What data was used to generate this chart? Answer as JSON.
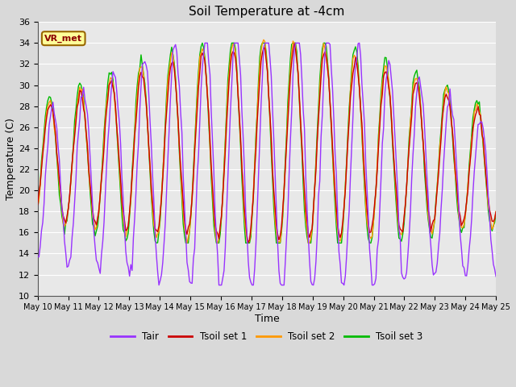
{
  "title": "Soil Temperature at -4cm",
  "xlabel": "Time",
  "ylabel": "Temperature (C)",
  "ylim": [
    10,
    36
  ],
  "yticks": [
    10,
    12,
    14,
    16,
    18,
    20,
    22,
    24,
    26,
    28,
    30,
    32,
    34,
    36
  ],
  "colors": {
    "Tair": "#9933ff",
    "Tsoil1": "#cc0000",
    "Tsoil2": "#ff9900",
    "Tsoil3": "#00bb00"
  },
  "annotation_text": "VR_met",
  "annotation_bg": "#ffff99",
  "annotation_border": "#996600",
  "legend_labels": [
    "Tair",
    "Tsoil set 1",
    "Tsoil set 2",
    "Tsoil set 3"
  ],
  "xtick_labels": [
    "May 10",
    "May 11",
    "May 12",
    "May 13",
    "May 14",
    "May 15",
    "May 16",
    "May 17",
    "May 18",
    "May 19",
    "May 20",
    "May 21",
    "May 22",
    "May 23",
    "May 24",
    "May 25"
  ],
  "linewidth": 1.0,
  "fig_width": 6.4,
  "fig_height": 4.8,
  "dpi": 100
}
